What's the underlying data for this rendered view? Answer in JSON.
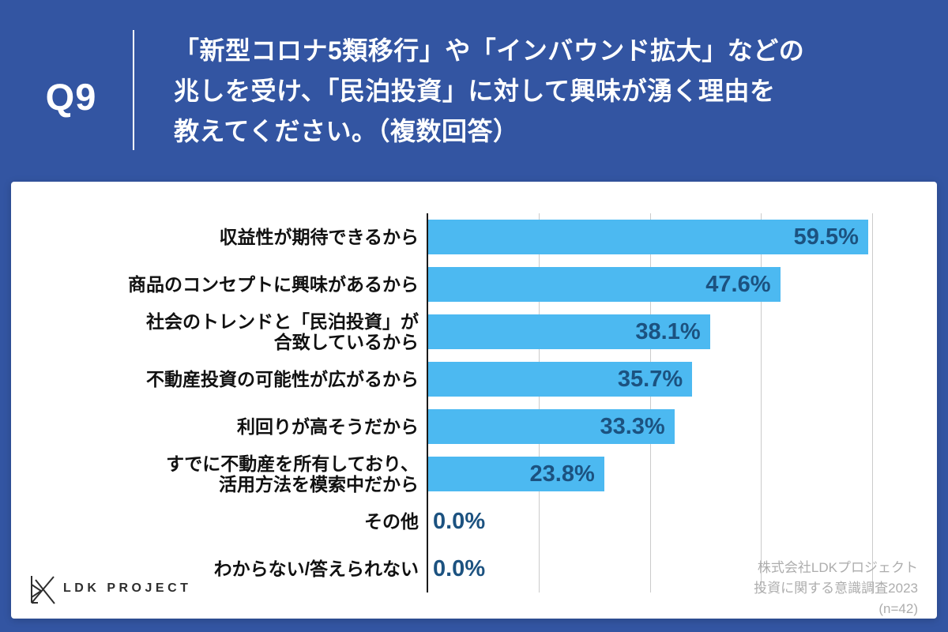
{
  "header": {
    "question_number": "Q9",
    "question_lines": [
      "「新型コロナ5類移行」や「インバウンド拡大」などの",
      "兆しを受け、「民泊投資」に対して興味が湧く理由を",
      "教えてください。（複数回答）"
    ]
  },
  "chart_data": {
    "type": "bar",
    "orientation": "horizontal",
    "categories": [
      "収益性が期待できるから",
      "商品のコンセプトに興味があるから",
      "社会のトレンドと「民泊投資」が\n合致しているから",
      "不動産投資の可能性が広がるから",
      "利回りが高そうだから",
      "すでに不動産を所有しており、\n活用方法を模索中だから",
      "その他",
      "わからない/答えられない"
    ],
    "values": [
      59.5,
      47.6,
      38.1,
      35.7,
      33.3,
      23.8,
      0.0,
      0.0
    ],
    "value_labels": [
      "59.5%",
      "47.6%",
      "38.1%",
      "35.7%",
      "33.3%",
      "23.8%",
      "0.0%",
      "0.0%"
    ],
    "xlim": [
      0,
      66
    ],
    "grid_percents": [
      15,
      30,
      45,
      60
    ],
    "grid": "vertical-only",
    "legend": "none",
    "bar_color": "#4CB9F1",
    "value_label_color": "#1C5280"
  },
  "footer": {
    "logo_text": "LDK PROJECT",
    "source_lines": [
      "株式会社LDKプロジェクト",
      "投資に関する意識調査2023",
      "(n=42)"
    ]
  },
  "colors": {
    "background": "#3355A2",
    "card": "#FFFFFF",
    "header_text": "#FFFFFF",
    "category_text": "#111111",
    "axis": "#1A1A1A",
    "gridline": "#CBCBCB",
    "source_text": "#ADADAD",
    "logo_color": "#2E2E2E"
  }
}
